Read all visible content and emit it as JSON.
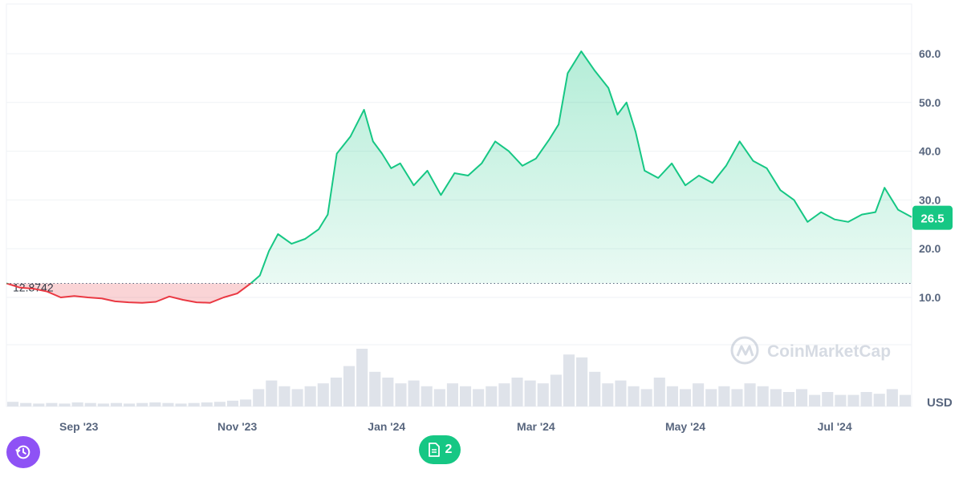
{
  "chart_data": {
    "type": "line",
    "currency": "USD",
    "baseline_label": "12.8742",
    "baseline_value": 12.8742,
    "current_value_label": "26.5",
    "x_ticks": [
      "Sep '23",
      "Nov '23",
      "Jan '24",
      "Mar '24",
      "May '24",
      "Jul '24"
    ],
    "y_ticks": [
      "10.0",
      "20.0",
      "30.0",
      "40.0",
      "50.0",
      "60.0"
    ],
    "ylim": [
      0,
      70
    ],
    "xlim": [
      0,
      100
    ],
    "colors": {
      "up": "#16c784",
      "down": "#ea3943",
      "volume": "#dfe3ea"
    },
    "series": [
      {
        "values": [
          [
            0,
            12.9
          ],
          [
            1.5,
            12.0
          ],
          [
            3,
            11.8
          ],
          [
            4.5,
            11.2
          ],
          [
            6,
            10.0
          ],
          [
            7.5,
            10.3
          ],
          [
            9,
            10.0
          ],
          [
            10.5,
            9.8
          ],
          [
            12,
            9.2
          ],
          [
            13.5,
            9.0
          ],
          [
            15,
            8.9
          ],
          [
            16.5,
            9.1
          ],
          [
            18,
            10.2
          ],
          [
            19.5,
            9.5
          ],
          [
            21,
            9.0
          ],
          [
            22.5,
            8.9
          ],
          [
            24,
            10.0
          ],
          [
            25.5,
            10.8
          ],
          [
            27,
            12.9
          ],
          [
            28,
            14.5
          ],
          [
            29,
            19.5
          ],
          [
            30,
            23.0
          ],
          [
            31.5,
            21.0
          ],
          [
            33,
            22.0
          ],
          [
            34.5,
            24.0
          ],
          [
            35.5,
            27.0
          ],
          [
            36.5,
            39.5
          ],
          [
            38,
            43.0
          ],
          [
            39.5,
            48.5
          ],
          [
            40.5,
            42.0
          ],
          [
            41.5,
            39.5
          ],
          [
            42.5,
            36.5
          ],
          [
            43.5,
            37.5
          ],
          [
            45,
            33.0
          ],
          [
            46.5,
            36.0
          ],
          [
            48,
            31.0
          ],
          [
            49.5,
            35.5
          ],
          [
            51,
            35.0
          ],
          [
            52.5,
            37.5
          ],
          [
            54,
            42.0
          ],
          [
            55.5,
            40.0
          ],
          [
            57,
            37.0
          ],
          [
            58.5,
            38.5
          ],
          [
            60,
            42.5
          ],
          [
            61,
            45.5
          ],
          [
            62,
            56.0
          ],
          [
            63.5,
            60.5
          ],
          [
            65,
            56.5
          ],
          [
            66.5,
            53.0
          ],
          [
            67.5,
            47.5
          ],
          [
            68.5,
            50.0
          ],
          [
            69.5,
            44.0
          ],
          [
            70.5,
            36.0
          ],
          [
            72,
            34.5
          ],
          [
            73.5,
            37.5
          ],
          [
            75,
            33.0
          ],
          [
            76.5,
            35.0
          ],
          [
            78,
            33.5
          ],
          [
            79.5,
            37.0
          ],
          [
            81,
            42.0
          ],
          [
            82.5,
            38.0
          ],
          [
            84,
            36.5
          ],
          [
            85.5,
            32.0
          ],
          [
            87,
            30.0
          ],
          [
            88.5,
            25.5
          ],
          [
            90,
            27.5
          ],
          [
            91.5,
            26.0
          ],
          [
            93,
            25.5
          ],
          [
            94.5,
            27.0
          ],
          [
            96,
            27.5
          ],
          [
            97,
            32.5
          ],
          [
            98.5,
            28.0
          ],
          [
            100,
            26.5
          ]
        ]
      }
    ],
    "volume": [
      0.08,
      0.06,
      0.05,
      0.06,
      0.05,
      0.07,
      0.06,
      0.05,
      0.06,
      0.05,
      0.06,
      0.07,
      0.06,
      0.05,
      0.06,
      0.07,
      0.08,
      0.1,
      0.12,
      0.3,
      0.45,
      0.35,
      0.3,
      0.35,
      0.4,
      0.5,
      0.7,
      1.0,
      0.6,
      0.5,
      0.4,
      0.45,
      0.35,
      0.3,
      0.4,
      0.35,
      0.3,
      0.35,
      0.4,
      0.5,
      0.45,
      0.4,
      0.55,
      0.9,
      0.85,
      0.6,
      0.4,
      0.45,
      0.35,
      0.3,
      0.5,
      0.35,
      0.3,
      0.4,
      0.3,
      0.35,
      0.3,
      0.4,
      0.35,
      0.3,
      0.25,
      0.3,
      0.2,
      0.25,
      0.2,
      0.2,
      0.25,
      0.22,
      0.3,
      0.2
    ]
  },
  "watermark": {
    "text": "CoinMarketCap"
  },
  "controls": {
    "history_icon": "history-clock-icon",
    "news_icon": "document-icon",
    "news_count": "2"
  }
}
